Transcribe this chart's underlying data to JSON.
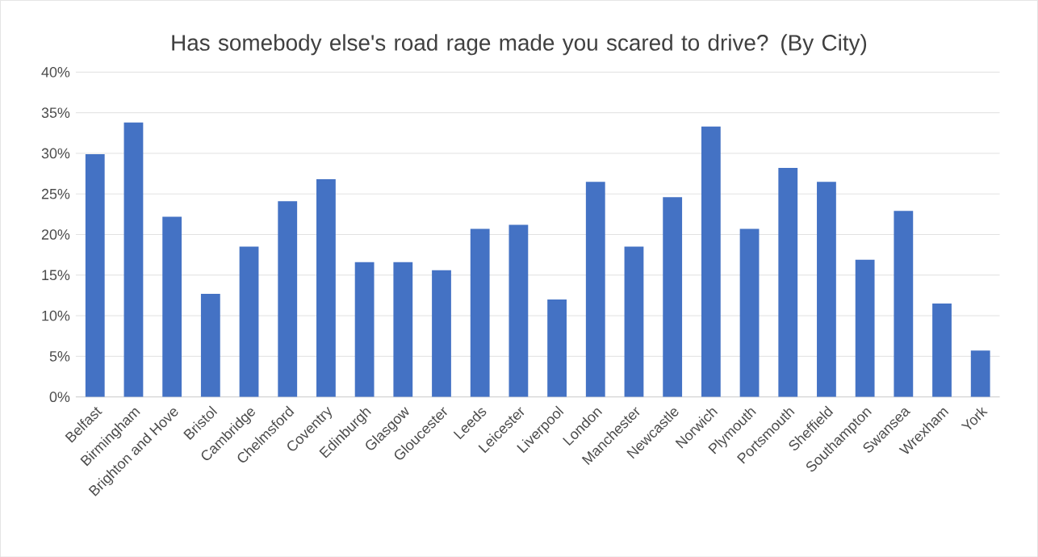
{
  "chart_data": {
    "type": "bar",
    "title": "Has somebody else's road rage made you scared to drive? (By City)",
    "categories": [
      "Belfast",
      "Birmingham",
      "Brighton and Hove",
      "Bristol",
      "Cambridge",
      "Chelmsford",
      "Coventry",
      "Edinburgh",
      "Glasgow",
      "Gloucester",
      "Leeds",
      "Leicester",
      "Liverpool",
      "London",
      "Manchester",
      "Newcastle",
      "Norwich",
      "Plymouth",
      "Portsmouth",
      "Sheffield",
      "Southampton",
      "Swansea",
      "Wrexham",
      "York"
    ],
    "values": [
      29.9,
      33.8,
      22.2,
      12.7,
      18.5,
      24.1,
      26.8,
      16.6,
      16.6,
      15.6,
      20.7,
      21.2,
      12.0,
      26.5,
      18.5,
      24.6,
      33.3,
      20.7,
      28.2,
      26.5,
      16.9,
      22.9,
      11.5,
      5.7
    ],
    "color": "#4472c4",
    "ylim": [
      0,
      40
    ],
    "yticks": [
      {
        "value": 0,
        "label": "0%"
      },
      {
        "value": 5,
        "label": "5%"
      },
      {
        "value": 10,
        "label": "10%"
      },
      {
        "value": 15,
        "label": "15%"
      },
      {
        "value": 20,
        "label": "20%"
      },
      {
        "value": 25,
        "label": "25%"
      },
      {
        "value": 30,
        "label": "30%"
      },
      {
        "value": 35,
        "label": "35%"
      },
      {
        "value": 40,
        "label": "40%"
      }
    ],
    "grid": "y"
  }
}
